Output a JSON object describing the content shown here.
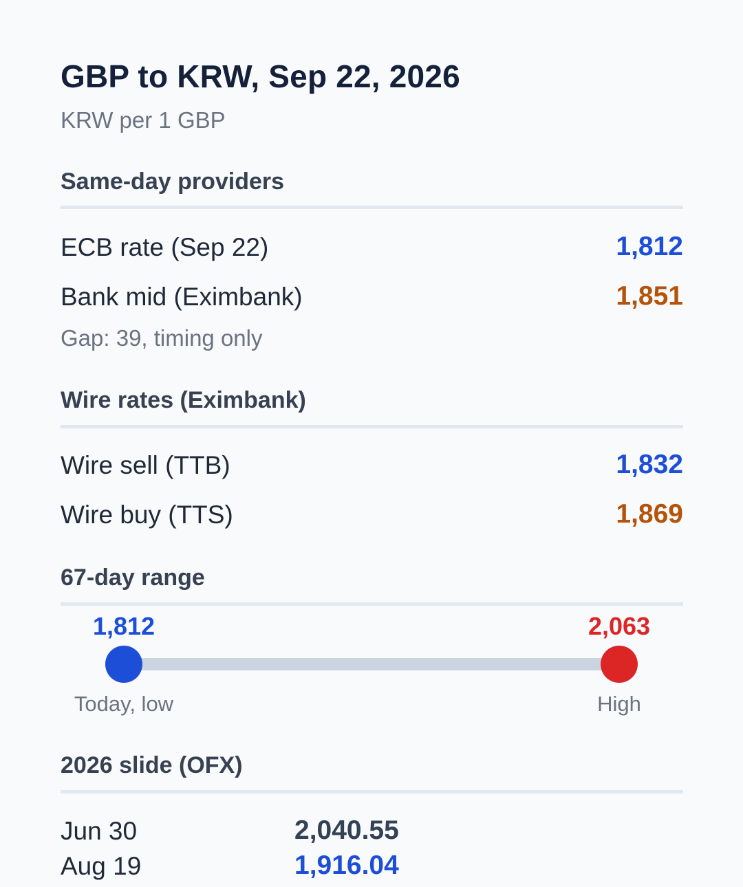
{
  "header": {
    "title": "GBP to KRW, Sep 22, 2026",
    "subtitle": "KRW per 1 GBP"
  },
  "same_day": {
    "heading": "Same-day providers",
    "rows": [
      {
        "label": "ECB rate (Sep 22)",
        "value": "1,812",
        "color": "#1d4ed8"
      },
      {
        "label": "Bank mid (Eximbank)",
        "value": "1,851",
        "color": "#b45309"
      }
    ],
    "note": "Gap: 39, timing only"
  },
  "wire": {
    "heading": "Wire rates (Eximbank)",
    "rows": [
      {
        "label": "Wire sell (TTB)",
        "value": "1,832",
        "color": "#1d4ed8"
      },
      {
        "label": "Wire buy (TTS)",
        "value": "1,869",
        "color": "#b45309"
      }
    ]
  },
  "range": {
    "heading": "67-day range",
    "low_value": "1,812",
    "low_caption": "Today, low",
    "high_value": "2,063",
    "high_caption": "High",
    "low_color": "#1d4ed8",
    "high_color": "#dc2626"
  },
  "slide": {
    "heading": "2026 slide (OFX)",
    "rows": [
      {
        "date": "Jun 30",
        "rate": "2,040.55"
      },
      {
        "date": "Aug 19",
        "rate": "1,916.04"
      }
    ]
  }
}
